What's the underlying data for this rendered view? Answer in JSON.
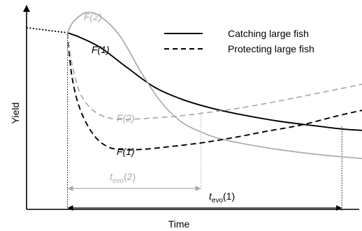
{
  "chart_data": {
    "type": "line",
    "title": "",
    "xlabel": "Time",
    "ylabel": "Yield",
    "grid": false,
    "legend_position": "top-right",
    "x_range": [
      0,
      100
    ],
    "y_range": [
      0,
      100
    ],
    "legend": [
      {
        "label": "Catching large fish",
        "style": "solid"
      },
      {
        "label": "Protecting large fish",
        "style": "dashed"
      }
    ],
    "series": [
      {
        "style": "dotted",
        "color": "#000000",
        "x": [
          0,
          12.2
        ],
        "y": [
          90.6,
          87.4
        ]
      },
      {
        "style": "solid",
        "color": "#000000",
        "x": [
          12.2,
          16,
          22,
          30,
          38,
          46,
          55,
          65,
          75,
          85,
          94,
          100
        ],
        "y": [
          87.4,
          84.5,
          78.2,
          65.7,
          53.7,
          46.2,
          40.5,
          36.0,
          32.4,
          29.7,
          27.5,
          26.6
        ]
      },
      {
        "style": "solid",
        "color": "#aaaaaa",
        "x": [
          12.2,
          14,
          17.8,
          22,
          28,
          34,
          40,
          46,
          52,
          58,
          66,
          76,
          88,
          100
        ],
        "y": [
          87.4,
          94.4,
          100,
          97.6,
          84.9,
          63.3,
          44.5,
          32.1,
          25.6,
          21.2,
          17.8,
          14.4,
          11.3,
          9.1
        ]
      },
      {
        "style": "dashed",
        "color": "#000000",
        "x": [
          12.2,
          13.5,
          16,
          20,
          24,
          28,
          34,
          42,
          52,
          62,
          72,
          82,
          92,
          100
        ],
        "y": [
          87.4,
          60.5,
          39.5,
          23.8,
          16.6,
          14.7,
          14.7,
          16.3,
          18.8,
          22.2,
          26.2,
          30.0,
          35.3,
          39.1
        ]
      },
      {
        "style": "dashed",
        "color": "#aaaaaa",
        "x": [
          12.2,
          13.5,
          16,
          20,
          25,
          30,
          36,
          44,
          52,
          62,
          74,
          86,
          100
        ],
        "y": [
          87.4,
          68.4,
          49.7,
          38.8,
          34.1,
          33.5,
          34.1,
          35.3,
          37.2,
          40.0,
          44.4,
          49.4,
          55.3
        ]
      }
    ],
    "annotations": {
      "f2_solid": "F(2)",
      "f1_solid": "F(1)",
      "f2_dashed": "F(2)",
      "f1_dashed": "F(1)",
      "tevo2_main": "t",
      "tevo2_sub": "evo",
      "tevo2_tail": "(2)",
      "tevo1_main": "t",
      "tevo1_sub": "evo",
      "tevo1_tail": "(1)"
    },
    "reference_lines": {
      "start_x": 12.2,
      "tevo2_end_x": 52,
      "tevo1_end_x": 94
    }
  }
}
